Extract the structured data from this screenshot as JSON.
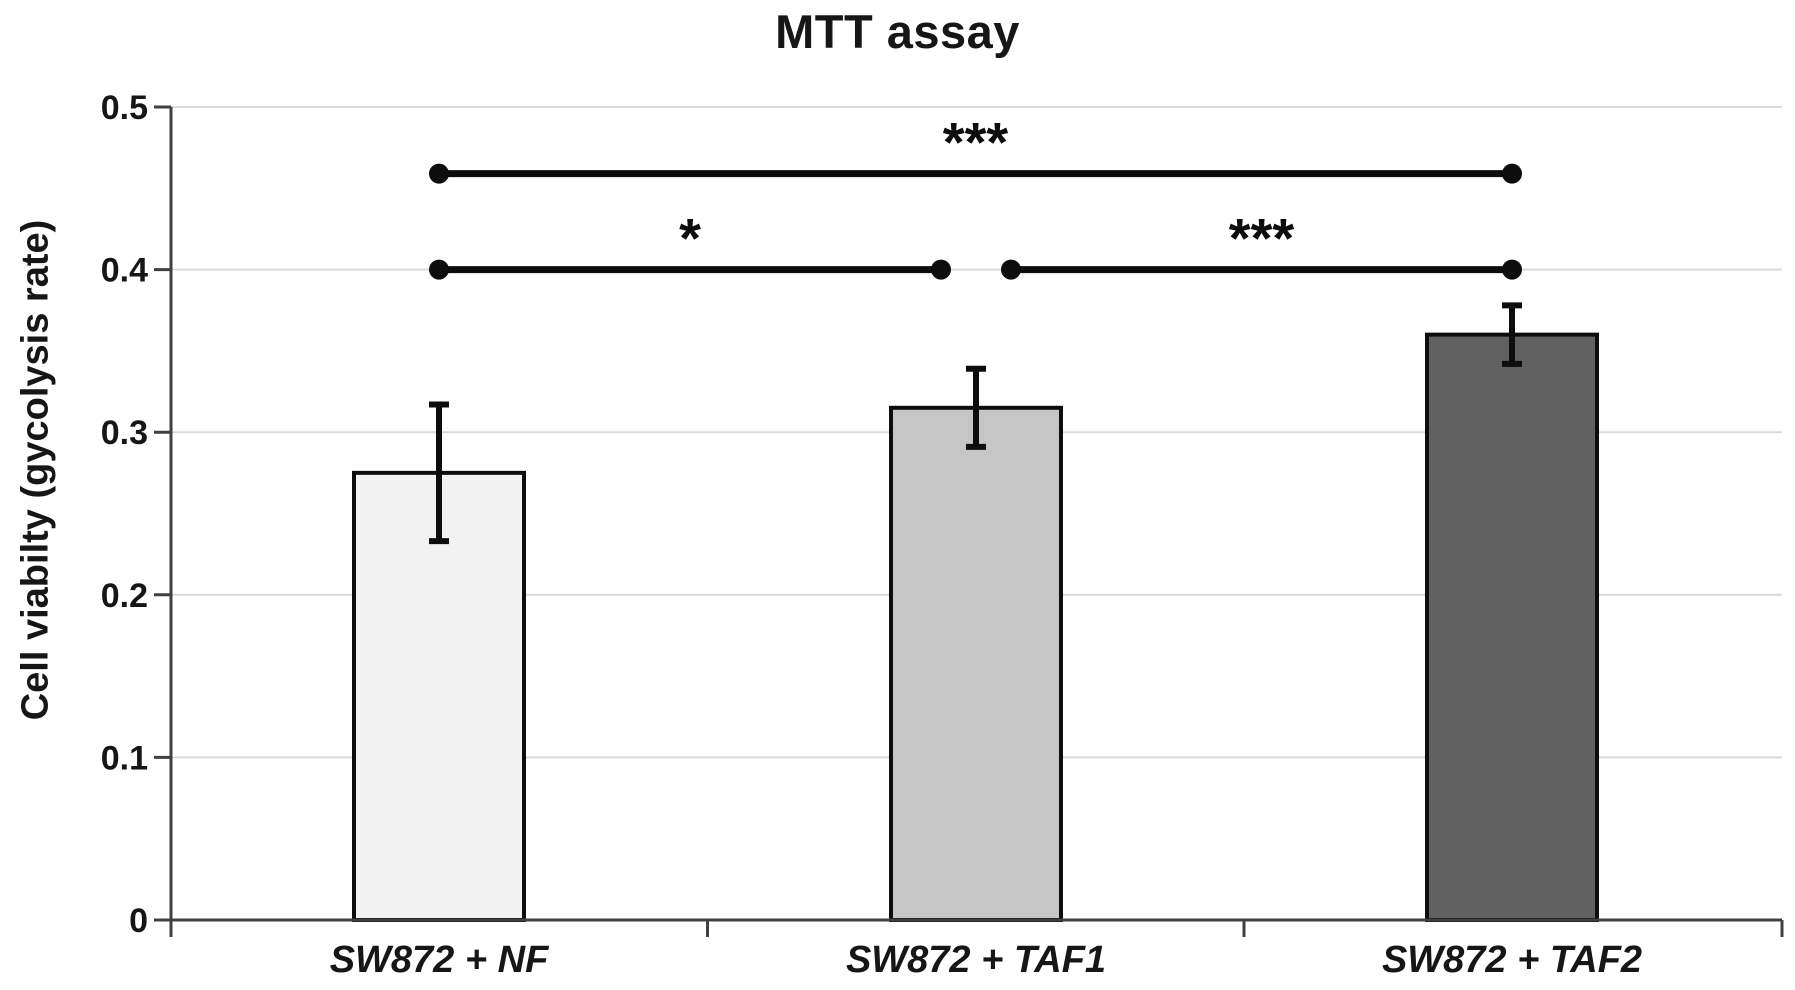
{
  "chart_data": {
    "type": "bar",
    "title": "MTT assay",
    "xlabel": "",
    "ylabel": "Cell viabilty (gycolysis rate)",
    "categories": [
      "SW872 + NF",
      "SW872 + TAF1",
      "SW872 + TAF2"
    ],
    "values": [
      0.275,
      0.315,
      0.36
    ],
    "errors": [
      0.042,
      0.024,
      0.018
    ],
    "ylim": [
      0,
      0.5
    ],
    "yticks": [
      0,
      0.1,
      0.2,
      0.3,
      0.4,
      0.5
    ],
    "ytick_labels": [
      "0",
      "0.1",
      "0.2",
      "0.3",
      "0.4",
      "0.5"
    ],
    "grid": "horizontal",
    "legend": "none",
    "bar_colors": [
      "#f2f2f2",
      "#c6c6c6",
      "#616161"
    ],
    "bar_edge_color": "#0d0d0d",
    "gridline_color": "#d9d9d9",
    "axis_color": "#404040",
    "significance_brackets": [
      {
        "from": 0,
        "to": 2,
        "level": 0.459,
        "label": "***"
      },
      {
        "from": 0,
        "to": 1,
        "level": 0.4,
        "label": "*"
      },
      {
        "from": 1,
        "to": 2,
        "level": 0.4,
        "label": "***"
      }
    ]
  }
}
